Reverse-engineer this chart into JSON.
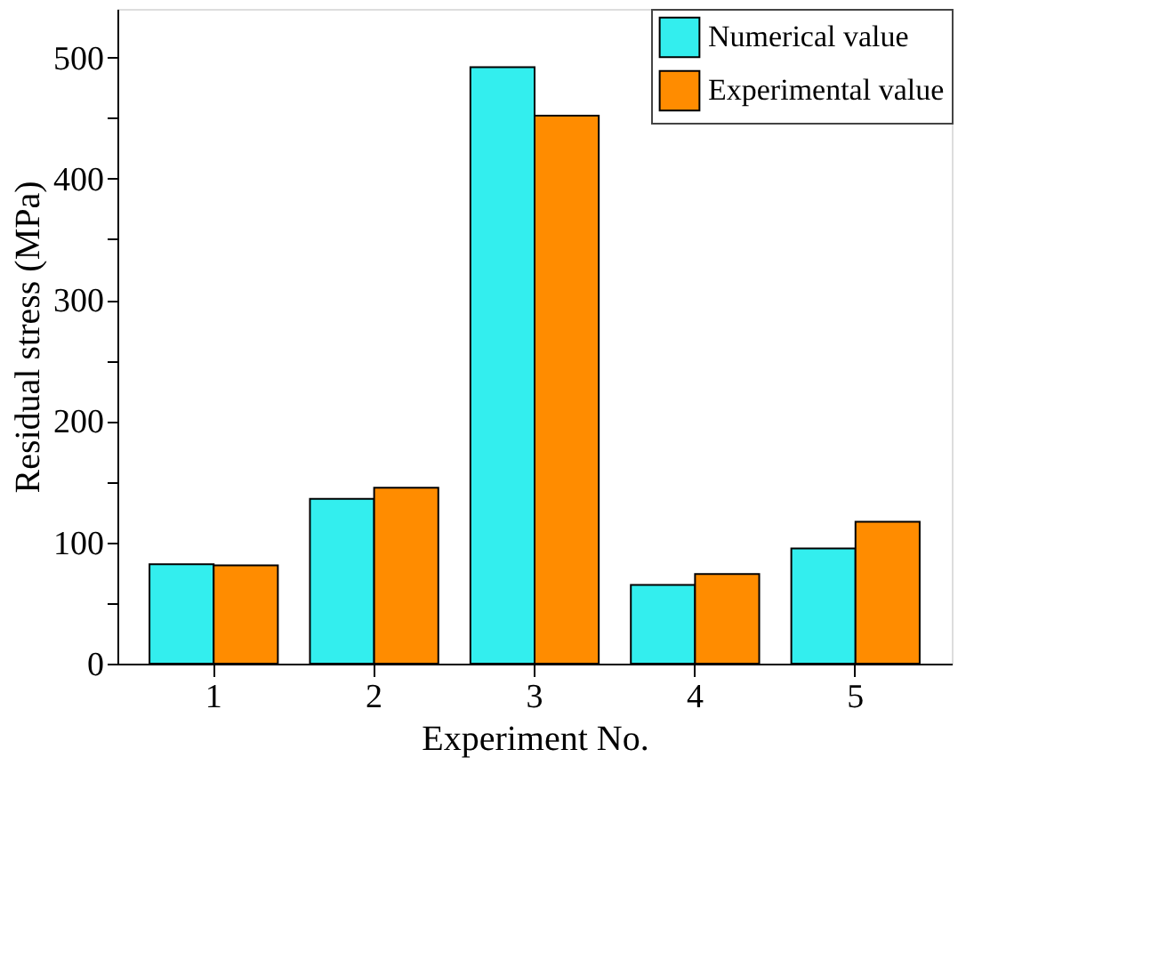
{
  "chart_data": {
    "type": "bar",
    "xlabel": "Experiment No.",
    "ylabel": "Residual stress (MPa)",
    "categories": [
      "1",
      "2",
      "3",
      "4",
      "5"
    ],
    "series": [
      {
        "name": "Numerical value",
        "color": "#33eeee",
        "values": [
          82,
          136,
          492,
          65,
          95
        ]
      },
      {
        "name": "Experimental value",
        "color": "#ff8c00",
        "values": [
          81,
          145,
          452,
          74,
          117
        ]
      }
    ],
    "ylim": [
      0,
      540
    ],
    "yticks": [
      0,
      {
        "value": 50,
        "label": null
      },
      100,
      {
        "value": 150,
        "label": null
      },
      200,
      {
        "value": 250,
        "label": null
      },
      300,
      {
        "value": 350,
        "label": null
      },
      400,
      {
        "value": 450,
        "label": null
      },
      500
    ],
    "legend": "top right",
    "grid": false
  }
}
